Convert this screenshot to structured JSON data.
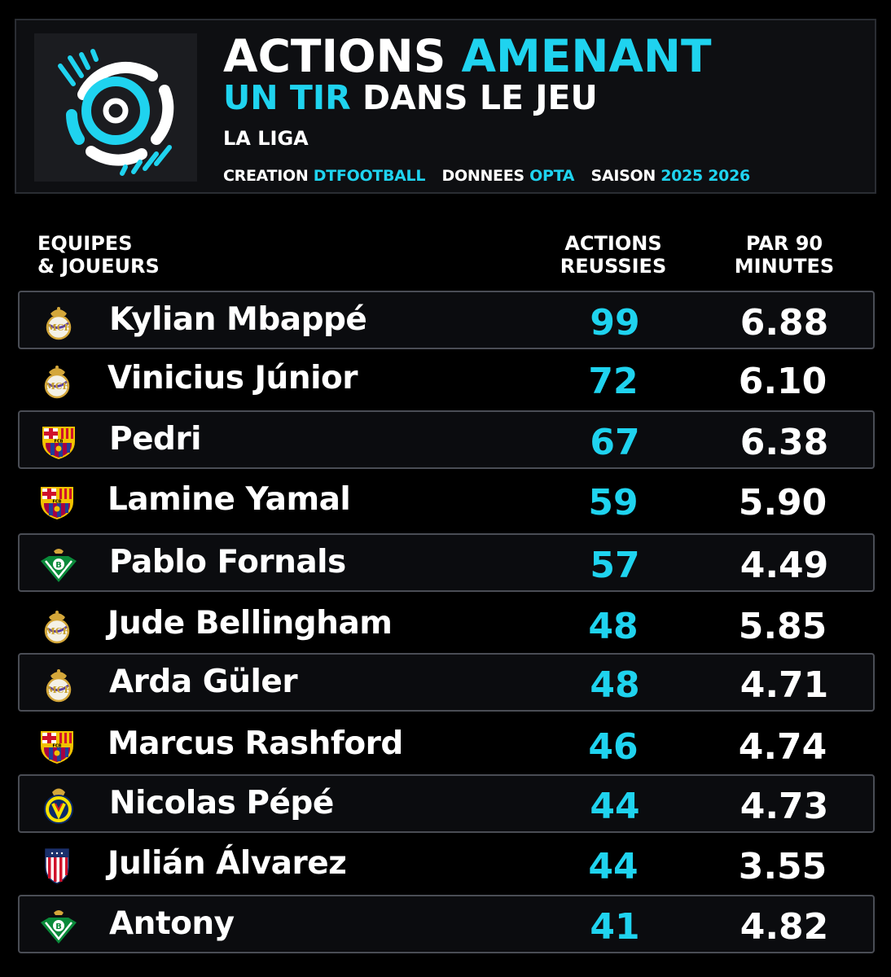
{
  "header": {
    "title_line1_a": "ACTIONS",
    "title_line1_b": "AMENANT",
    "title_line2_a": "UN TIR",
    "title_line2_b": "DANS LE JEU",
    "league": "LA LIGA",
    "creation_label": "CREATION",
    "creation_value": "DTFOOTBALL",
    "data_label": "DONNEES",
    "data_value": "OPTA",
    "season_label": "SAISON",
    "season_value": "2025 2026",
    "logo_icon": "dtfootball-logo"
  },
  "columns": {
    "team": "EQUIPES\n& JOUEURS",
    "actions": "ACTIONS\nREUSSIES",
    "per90": "PAR 90\nMINUTES"
  },
  "colors": {
    "accent": "#1fd3ef",
    "background": "#000000",
    "row_box_border": "#4a4d55"
  },
  "rows": [
    {
      "crest": "real-madrid-crest",
      "player": "Kylian Mbappé",
      "actions": "99",
      "per90": "6.88"
    },
    {
      "crest": "real-madrid-crest",
      "player": "Vinicius Júnior",
      "actions": "72",
      "per90": "6.10"
    },
    {
      "crest": "fc-barcelona-crest",
      "player": "Pedri",
      "actions": "67",
      "per90": "6.38"
    },
    {
      "crest": "fc-barcelona-crest",
      "player": "Lamine Yamal",
      "actions": "59",
      "per90": "5.90"
    },
    {
      "crest": "real-betis-crest",
      "player": "Pablo Fornals",
      "actions": "57",
      "per90": "4.49"
    },
    {
      "crest": "real-madrid-crest",
      "player": "Jude Bellingham",
      "actions": "48",
      "per90": "5.85"
    },
    {
      "crest": "real-madrid-crest",
      "player": "Arda Güler",
      "actions": "48",
      "per90": "4.71"
    },
    {
      "crest": "fc-barcelona-crest",
      "player": "Marcus Rashford",
      "actions": "46",
      "per90": "4.74"
    },
    {
      "crest": "villarreal-crest",
      "player": "Nicolas Pépé",
      "actions": "44",
      "per90": "4.73"
    },
    {
      "crest": "atletico-madrid-crest",
      "player": "Julián Álvarez",
      "actions": "44",
      "per90": "3.55"
    },
    {
      "crest": "real-betis-crest",
      "player": "Antony",
      "actions": "41",
      "per90": "4.82"
    }
  ]
}
